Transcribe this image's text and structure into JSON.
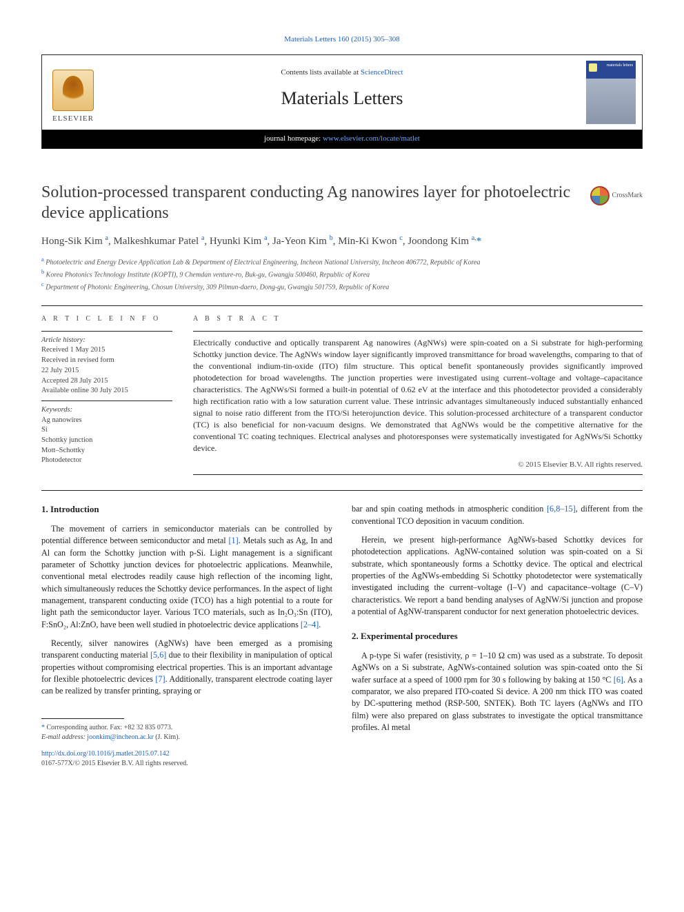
{
  "citation": "Materials Letters 160 (2015) 305–308",
  "header": {
    "contents_prefix": "Contents lists available at ",
    "contents_link": "ScienceDirect",
    "journal": "Materials Letters",
    "homepage_prefix": "journal homepage: ",
    "homepage_url": "www.elsevier.com/locate/matlet",
    "publisher": "ELSEVIER",
    "cover_label": "materials letters"
  },
  "crossmark": "CrossMark",
  "title": "Solution-processed transparent conducting Ag nanowires layer for photoelectric device applications",
  "authors_html": "Hong-Sik Kim <sup>a</sup>, Malkeshkumar Patel <sup>a</sup>, Hyunki Kim <sup>a</sup>, Ja-Yeon Kim <sup>b</sup>, Min-Ki Kwon <sup>c</sup>, Joondong Kim <sup>a,</sup><span class='star'>*</span>",
  "affiliations": [
    {
      "sup": "a",
      "text": "Photoelectric and Energy Device Application Lab & Department of Electrical Engineering, Incheon National University, Incheon 406772, Republic of Korea"
    },
    {
      "sup": "b",
      "text": "Korea Photonics Technology Institute (KOPTI), 9 Chemdan venture-ro, Buk-gu, Gwangju 500460, Republic of Korea"
    },
    {
      "sup": "c",
      "text": "Department of Photonic Engineering, Chosun University, 309 Pilmun-daero, Dong-gu, Gwangju 501759, Republic of Korea"
    }
  ],
  "info": {
    "label": "A R T I C L E  I N F O",
    "history_head": "Article history:",
    "history": [
      "Received 1 May 2015",
      "Received in revised form",
      "22 July 2015",
      "Accepted 28 July 2015",
      "Available online 30 July 2015"
    ],
    "keywords_head": "Keywords:",
    "keywords": [
      "Ag nanowires",
      "Si",
      "Schottky junction",
      "Mott–Schottky",
      "Photodetector"
    ]
  },
  "abstract": {
    "label": "A B S T R A C T",
    "text": "Electrically conductive and optically transparent Ag nanowires (AgNWs) were spin-coated on a Si substrate for high-performing Schottky junction device. The AgNWs window layer significantly improved transmittance for broad wavelengths, comparing to that of the conventional indium-tin-oxide (ITO) film structure. This optical benefit spontaneously provides significantly improved photodetection for broad wavelengths. The junction properties were investigated using current–voltage and voltage–capacitance characteristics. The AgNWs/Si formed a built-in potential of 0.62 eV at the interface and this photodetector provided a considerably high rectification ratio with a low saturation current value. These intrinsic advantages simultaneously induced substantially enhanced signal to noise ratio different from the ITO/Si heterojunction device. This solution-processed architecture of a transparent conductor (TC) is also beneficial for non-vacuum designs. We demonstrated that AgNWs would be the competitive alternative for the conventional TC coating techniques. Electrical analyses and photoresponses were systematically investigated for AgNWs/Si Schottky device.",
    "copyright": "© 2015 Elsevier B.V. All rights reserved."
  },
  "sections": {
    "intro_head": "1.  Introduction",
    "intro_p1_pre": "The movement of carriers in semiconductor materials can be controlled by potential difference between semiconductor and metal ",
    "intro_p1_ref1": "[1]",
    "intro_p1_mid": ". Metals such as Ag, In and Al can form the Schottky junction with p-Si. Light management is a significant parameter of Schottky junction devices for photoelectric applications. Meanwhile, conventional metal electrodes readily cause high reflection of the incoming light, which simultaneously reduces the Schottky device performances. In the aspect of light management, transparent conducting oxide (TCO) has a high potential to a route for light path the semiconductor layer. Various TCO materials, such as In₂O₃:Sn (ITO), F:SnO₂, Al:ZnO, have been well studied in photoelectric device applications ",
    "intro_p1_ref2": "[2–4]",
    "intro_p1_post": ".",
    "intro_p2_pre": "Recently, silver nanowires (AgNWs) have been emerged as a promising transparent conducting material ",
    "intro_p2_ref1": "[5,6]",
    "intro_p2_mid": " due to their flexibility in manipulation of optical properties without compromising electrical properties. This is an important advantage for flexible photoelectric devices ",
    "intro_p2_ref2": "[7]",
    "intro_p2_post": ". Additionally, transparent electrode coating layer can be realized by transfer printing, spraying or",
    "intro_p3_pre": "bar and spin coating methods in atmospheric condition ",
    "intro_p3_ref": "[6,8–15]",
    "intro_p3_post": ", different from the conventional TCO deposition in vacuum condition.",
    "intro_p4": "Herein, we present high-performance AgNWs-based Schottky devices for photodetection applications. AgNW-contained solution was spin-coated on a Si substrate, which spontaneously forms a Schottky device. The optical and electrical properties of the AgNWs-embedding Si Schottky photodetector were systematically investigated including the current–voltage (I–V) and capacitance–voltage (C–V) characteristics. We report a band bending analyses of AgNW/Si junction and propose a potential of AgNW-transparent conductor for next generation photoelectric devices.",
    "exp_head": "2.  Experimental procedures",
    "exp_p1_pre": "A p-type Si wafer (resistivity, ρ = 1–10 Ω cm) was used as a substrate. To deposit AgNWs on a Si substrate, AgNWs-contained solution was spin-coated onto the Si wafer surface at a speed of 1000 rpm for 30 s following by baking at 150 °C ",
    "exp_p1_ref": "[6]",
    "exp_p1_post": ". As a comparator, we also prepared ITO-coated Si device. A 200 nm thick ITO was coated by DC-sputtering method (RSP-500, SNTEK). Both TC layers (AgNWs and ITO film) were also prepared on glass substrates to investigate the optical transmittance profiles. Al metal"
  },
  "footnotes": {
    "corr": "Corresponding author. Fax: +82 32 835 0773.",
    "email_label": "E-mail address: ",
    "email": "joonkim@incheon.ac.kr",
    "email_who": " (J. Kim).",
    "doi": "http://dx.doi.org/10.1016/j.matlet.2015.07.142",
    "issn": "0167-577X/© 2015 Elsevier B.V. All rights reserved."
  },
  "colors": {
    "link": "#2060bb",
    "text": "#1a1a1a",
    "rule": "#222222"
  }
}
